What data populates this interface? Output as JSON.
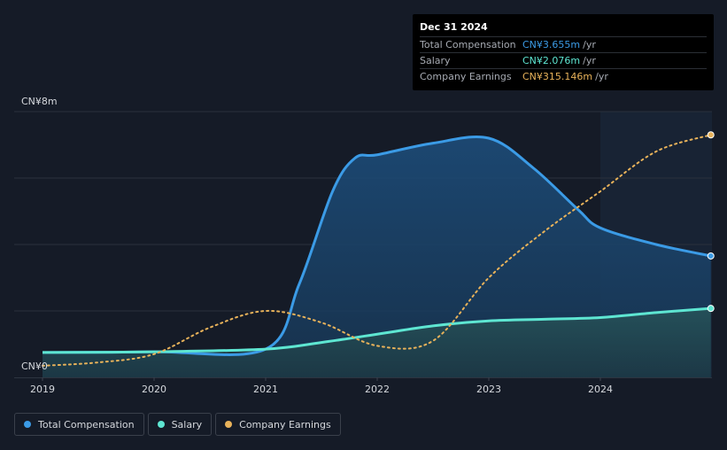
{
  "tooltip": {
    "date": "Dec 31 2024",
    "rows": [
      {
        "label": "Total Compensation",
        "value": "CN¥3.655m",
        "unit": "/yr",
        "color": "#3b9be6"
      },
      {
        "label": "Salary",
        "value": "CN¥2.076m",
        "unit": "/yr",
        "color": "#5ee6d2"
      },
      {
        "label": "Company Earnings",
        "value": "CN¥315.146m",
        "unit": "/yr",
        "color": "#e8b25a"
      }
    ]
  },
  "legend": [
    {
      "label": "Total Compensation",
      "color": "#3b9be6"
    },
    {
      "label": "Salary",
      "color": "#5ee6d2"
    },
    {
      "label": "Company Earnings",
      "color": "#e8b25a"
    }
  ],
  "chart_data": {
    "type": "area",
    "ytick_labels": [
      "CN¥8m",
      "CN¥0"
    ],
    "ylim": [
      0,
      8
    ],
    "xlim": [
      2019,
      2024.99
    ],
    "xticks": [
      2019,
      2020,
      2021,
      2022,
      2023,
      2024
    ],
    "xtick_labels": [
      "2019",
      "2020",
      "2021",
      "2022",
      "2023",
      "2024"
    ],
    "forecast_start": 2024,
    "series": [
      {
        "name": "Total Compensation",
        "color": "#3b9be6",
        "points": [
          [
            2019,
            0.75
          ],
          [
            2020,
            0.77
          ],
          [
            2021,
            0.85
          ],
          [
            2021.3,
            2.8
          ],
          [
            2021.6,
            5.6
          ],
          [
            2021.8,
            6.6
          ],
          [
            2022,
            6.7
          ],
          [
            2022.5,
            7.05
          ],
          [
            2023,
            7.2
          ],
          [
            2023.4,
            6.3
          ],
          [
            2023.8,
            5.05
          ],
          [
            2024,
            4.5
          ],
          [
            2024.5,
            4.0
          ],
          [
            2024.99,
            3.655
          ]
        ]
      },
      {
        "name": "Salary",
        "color": "#5ee6d2",
        "points": [
          [
            2019,
            0.75
          ],
          [
            2020,
            0.77
          ],
          [
            2021,
            0.85
          ],
          [
            2021.5,
            1.05
          ],
          [
            2022,
            1.3
          ],
          [
            2022.5,
            1.55
          ],
          [
            2023,
            1.7
          ],
          [
            2023.5,
            1.75
          ],
          [
            2024,
            1.8
          ],
          [
            2024.5,
            1.95
          ],
          [
            2024.99,
            2.076
          ]
        ]
      },
      {
        "name": "Company Earnings",
        "color": "#e8b25a",
        "points": [
          [
            2019,
            0.35
          ],
          [
            2019.5,
            0.45
          ],
          [
            2020,
            0.7
          ],
          [
            2020.5,
            1.5
          ],
          [
            2021,
            2.0
          ],
          [
            2021.5,
            1.65
          ],
          [
            2022,
            0.95
          ],
          [
            2022.5,
            1.1
          ],
          [
            2023,
            3.0
          ],
          [
            2023.5,
            4.4
          ],
          [
            2024,
            5.6
          ],
          [
            2024.5,
            6.8
          ],
          [
            2024.99,
            7.3
          ]
        ]
      }
    ]
  }
}
